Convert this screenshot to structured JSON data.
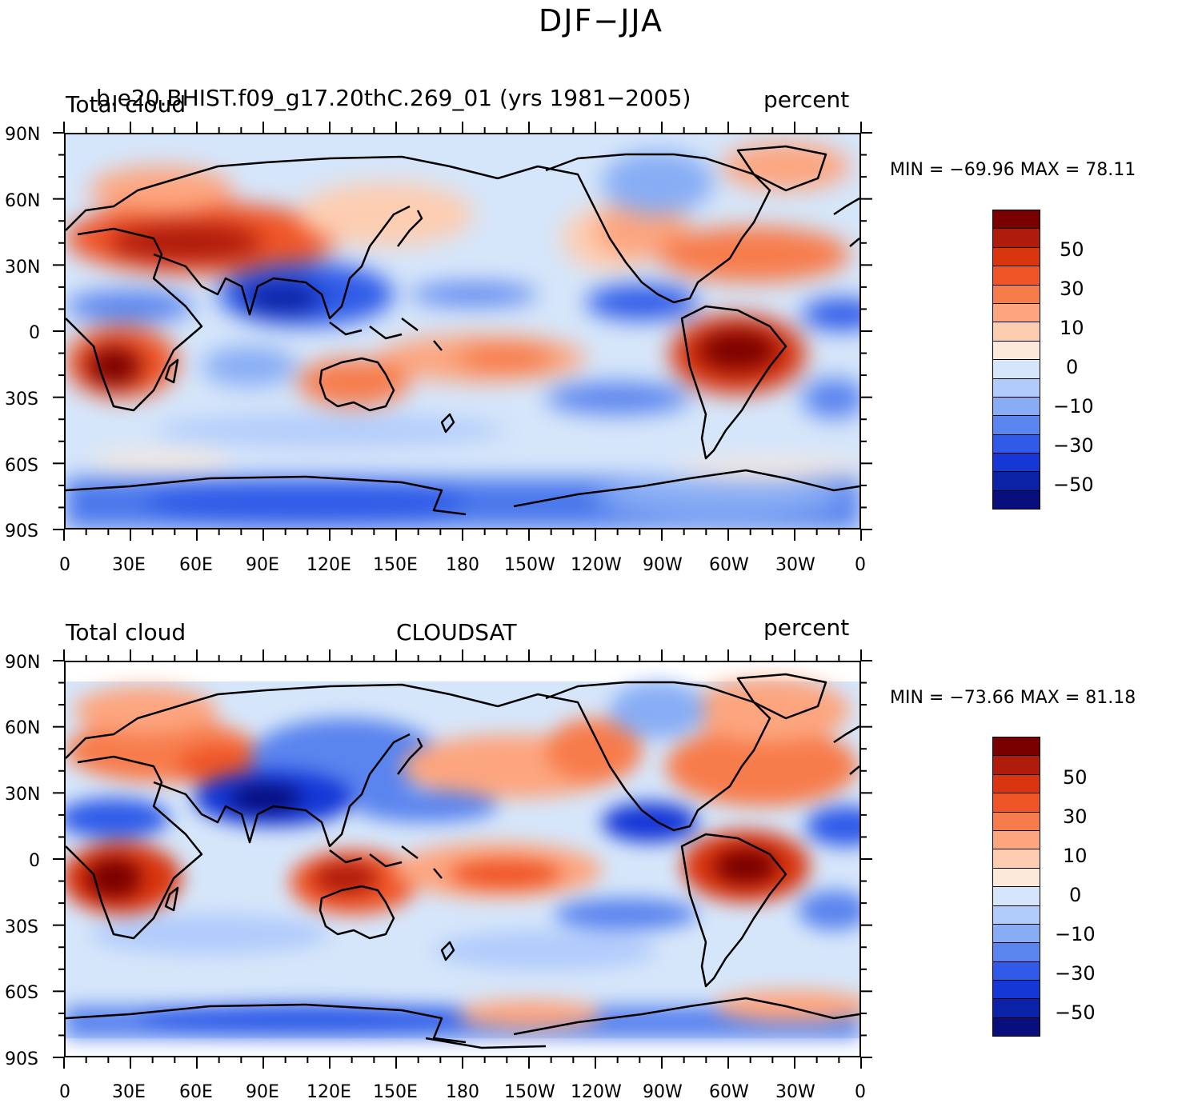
{
  "title": "DJF−JJA",
  "x_ticks": [
    "0",
    "30E",
    "60E",
    "90E",
    "120E",
    "150E",
    "180",
    "150W",
    "120W",
    "90W",
    "60W",
    "30W",
    "0"
  ],
  "y_ticks": [
    "90N",
    "60N",
    "30N",
    "0",
    "30S",
    "60S",
    "90S"
  ],
  "colorbar": {
    "colors": [
      "#7a0000",
      "#b01c0c",
      "#d9360f",
      "#ef5527",
      "#f77c4c",
      "#fca57f",
      "#fdcdb1",
      "#fde9d9",
      "#d6e6fa",
      "#b1cbfb",
      "#88adf5",
      "#5a84ee",
      "#2f5be8",
      "#1437d6",
      "#0c22a6",
      "#080e7c"
    ],
    "labels": [
      "50",
      "30",
      "10",
      "0",
      "−10",
      "−30",
      "−50"
    ]
  },
  "panels": [
    {
      "left_title": "Total cloud",
      "center_title": "b.e20.BHIST.f09_g17.20thC.269_01 (yrs 1981−2005)",
      "right_title": "percent",
      "min_max": "MIN = −69.96  MAX =   78.11",
      "min": -69.96,
      "max": 78.11
    },
    {
      "left_title": "Total cloud",
      "center_title": "CLOUDSAT",
      "right_title": "percent",
      "min_max": "MIN = −73.66  MAX =   81.18",
      "min": -73.66,
      "max": 81.18
    }
  ]
}
